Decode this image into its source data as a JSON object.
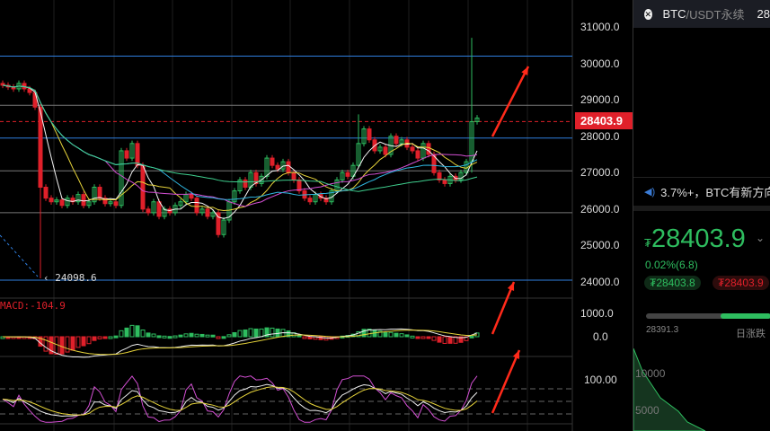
{
  "symbol": {
    "base": "BTC",
    "quote": "/USDT永续",
    "header_price": "28"
  },
  "price_axis": [
    "31000.0",
    "30000.0",
    "29000.0",
    "28000.0",
    "27000.0",
    "26000.0",
    "25000.0",
    "24000.0"
  ],
  "current_price_tag": "28403.9",
  "low_marker": "24098.6",
  "macd": {
    "label": "MACD:-104.9",
    "axis": [
      "1000.0",
      "0.0"
    ]
  },
  "kdj": {
    "axis": [
      "100.00"
    ]
  },
  "candles": {
    "closes": [
      29400,
      29350,
      29300,
      29450,
      29300,
      29200,
      28800,
      26600,
      26300,
      26200,
      26250,
      26100,
      26300,
      26200,
      26400,
      26100,
      26200,
      26600,
      26300,
      26150,
      26200,
      26100,
      27600,
      27400,
      27800,
      27200,
      26000,
      25900,
      26200,
      25800,
      26000,
      25900,
      26100,
      26200,
      26400,
      26300,
      25900,
      26000,
      25800,
      25900,
      25300,
      25700,
      26200,
      26500,
      26800,
      26600,
      27000,
      26700,
      26900,
      27400,
      27200,
      27100,
      27300,
      27000,
      26800,
      26500,
      26300,
      26200,
      26400,
      26300,
      26200,
      26500,
      26800,
      27000,
      26900,
      27200,
      27800,
      28200,
      27900,
      27600,
      27700,
      27500,
      28000,
      27800,
      27900,
      27700,
      27600,
      27400,
      27800,
      27500,
      27000,
      26800,
      26700,
      26900,
      26800,
      27000,
      27300,
      28400,
      28500
    ],
    "overrides": {
      "7": {
        "low": 24098.6
      },
      "87": {
        "high": 30700,
        "low": 27000
      },
      "66": {
        "high": 28600
      }
    }
  },
  "levels": {
    "blue": [
      30200,
      27950,
      24050
    ],
    "gray": [
      28850,
      27050,
      25900
    ],
    "current": 28403.9
  },
  "colors": {
    "up": "#2ebd5f",
    "down": "#e0202a",
    "ma": [
      "#f5f5f5",
      "#e6d33a",
      "#d34fd3",
      "#2fb6e0",
      "#3fcf8e"
    ]
  },
  "side": {
    "notice": "3.7%+，BTC有新方向",
    "last_price": "28403.9",
    "currency": "₮",
    "change": "0.02%(6.8)",
    "bid": "₮28403.8",
    "ask": "₮28403.9",
    "range_low": "28391.3",
    "daily_label": "日涨跌",
    "daily_progress": 0.4,
    "depth_labels": [
      "10000",
      "5000"
    ]
  }
}
